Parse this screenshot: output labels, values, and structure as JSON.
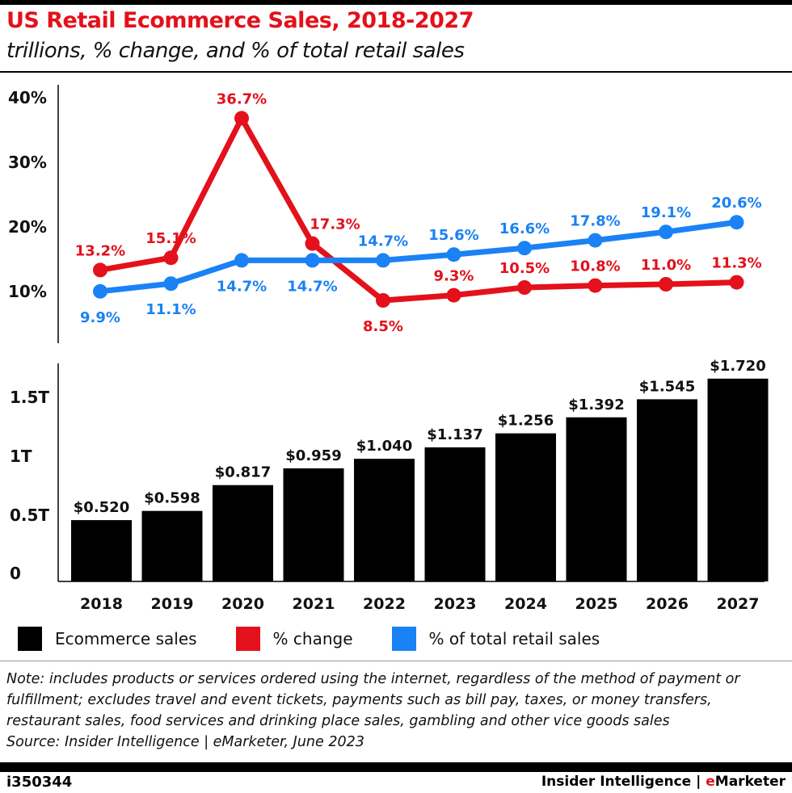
{
  "title": "US Retail Ecommerce Sales, 2018-2027",
  "subtitle": "trillions, % change, and % of total retail sales",
  "chart_data": [
    {
      "type": "line",
      "categories": [
        "2018",
        "2019",
        "2020",
        "2021",
        "2022",
        "2023",
        "2024",
        "2025",
        "2026",
        "2027"
      ],
      "y_ticks": [
        "10%",
        "20%",
        "30%",
        "40%"
      ],
      "ylim": [
        0,
        40
      ],
      "series": [
        {
          "name": "% change",
          "color": "#e3111b",
          "values": [
            13.2,
            15.1,
            36.7,
            17.3,
            8.5,
            9.3,
            10.5,
            10.8,
            11.0,
            11.3
          ],
          "labels": [
            "13.2%",
            "15.1%",
            "36.7%",
            "17.3%",
            "8.5%",
            "9.3%",
            "10.5%",
            "10.8%",
            "11.0%",
            "11.3%"
          ]
        },
        {
          "name": "% of total retail sales",
          "color": "#1a82f4",
          "values": [
            9.9,
            11.1,
            14.7,
            14.7,
            14.7,
            15.6,
            16.6,
            17.8,
            19.1,
            20.6
          ],
          "labels": [
            "9.9%",
            "11.1%",
            "14.7%",
            "14.7%",
            "14.7%",
            "15.6%",
            "16.6%",
            "17.8%",
            "19.1%",
            "20.6%"
          ]
        }
      ]
    },
    {
      "type": "bar",
      "categories": [
        "2018",
        "2019",
        "2020",
        "2021",
        "2022",
        "2023",
        "2024",
        "2025",
        "2026",
        "2027"
      ],
      "y_ticks": [
        "0",
        "0.5T",
        "1T",
        "1.5T"
      ],
      "ylim": [
        0,
        1.75
      ],
      "series": [
        {
          "name": "Ecommerce sales",
          "color": "#000000",
          "values": [
            0.52,
            0.598,
            0.817,
            0.959,
            1.04,
            1.137,
            1.256,
            1.392,
            1.545,
            1.72
          ],
          "labels": [
            "$0.520",
            "$0.598",
            "$0.817",
            "$0.959",
            "$1.040",
            "$1.137",
            "$1.256",
            "$1.392",
            "$1.545",
            "$1.720"
          ]
        }
      ]
    }
  ],
  "legend": [
    {
      "label": "Ecommerce sales",
      "color": "#000000"
    },
    {
      "label": "% change",
      "color": "#e3111b"
    },
    {
      "label": "% of total retail sales",
      "color": "#1a82f4"
    }
  ],
  "note": "Note: includes products or services ordered using the internet, regardless of the method of payment or fulfillment; excludes travel and event tickets, payments such as bill pay, taxes, or money transfers, restaurant sales, food services and drinking place sales, gambling and other vice goods sales",
  "source": "Source: Insider Intelligence | eMarketer, June 2023",
  "footer": {
    "id": "i350344",
    "brand_left": "Insider Intelligence | ",
    "brand_e": "e",
    "brand_right": "Marketer"
  }
}
